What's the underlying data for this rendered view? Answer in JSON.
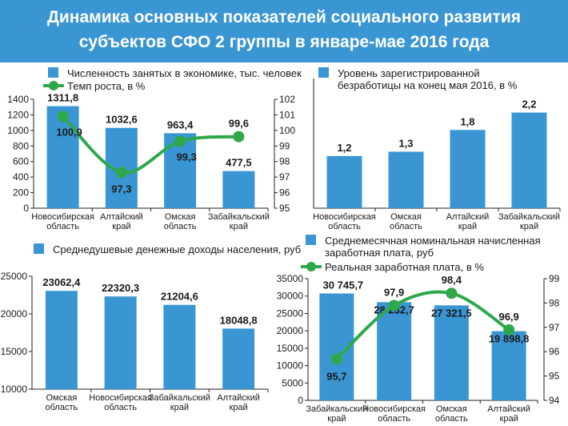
{
  "title_line1": "Динамика основных показателей социального развития",
  "title_line2": "субъектов СФО 2 группы в январе-мае 2016 года",
  "colors": {
    "banner": "#3a96d2",
    "bar": "#3a96d2",
    "line": "#2ea84a",
    "line_dot": "#2ea84a",
    "text": "#1a1a1a"
  },
  "chart_data": [
    {
      "id": "employment",
      "type": "bar+line",
      "categories": [
        [
          "Новосибирская",
          "область"
        ],
        [
          "Алтайский",
          "край"
        ],
        [
          "Омская",
          "область"
        ],
        [
          "Забайкальский",
          "край"
        ]
      ],
      "series": [
        {
          "name": "Численность занятых в экономике, тыс. человек",
          "type": "bar",
          "values": [
            1311.8,
            1032.6,
            963.4,
            477.5
          ],
          "labels": [
            "1311,8",
            "1032,6",
            "963,4",
            "477,5"
          ]
        },
        {
          "name": "Темп роста, в %",
          "type": "line",
          "values": [
            100.9,
            97.3,
            99.3,
            99.6
          ],
          "labels": [
            "100,9",
            "97,3",
            "99,3",
            "99,6"
          ]
        }
      ],
      "y_left": {
        "min": 0,
        "max": 1400,
        "ticks": [
          0,
          200,
          400,
          600,
          800,
          1000,
          1200,
          1400
        ]
      },
      "y_right": {
        "min": 95,
        "max": 102,
        "ticks": [
          95,
          96,
          97,
          98,
          99,
          100,
          101,
          102
        ]
      }
    },
    {
      "id": "unemployment",
      "type": "bar",
      "categories": [
        [
          "Новосибирская",
          "область"
        ],
        [
          "Омская",
          "область"
        ],
        [
          "Алтайский",
          "край"
        ],
        [
          "Забайкальский",
          "край"
        ]
      ],
      "series": [
        {
          "name": [
            "Уровень зарегистрированной",
            "безработицы на конец мая 2016, в %"
          ],
          "type": "bar",
          "values": [
            1.2,
            1.3,
            1.8,
            2.2
          ],
          "labels": [
            "1,2",
            "1,3",
            "1,8",
            "2,2"
          ]
        }
      ],
      "y_left": {
        "min": 0,
        "max": 2.8
      }
    },
    {
      "id": "income",
      "type": "bar",
      "categories": [
        [
          "Омская",
          "область"
        ],
        [
          "Новосибирская",
          "область"
        ],
        [
          "Забайкальский",
          "край"
        ],
        [
          "Алтайский",
          "край"
        ]
      ],
      "series": [
        {
          "name": "Среднедушевые денежные доходы населения, руб",
          "type": "bar",
          "values": [
            23062.4,
            22320.3,
            21204.6,
            18048.8
          ],
          "labels": [
            "23062,4",
            "22320,3",
            "21204,6",
            "18048,8"
          ]
        }
      ],
      "y_left": {
        "min": 10000,
        "max": 25000,
        "ticks": [
          10000,
          15000,
          20000,
          25000
        ]
      }
    },
    {
      "id": "wages",
      "type": "bar+line",
      "categories": [
        [
          "Забайкальский",
          "край"
        ],
        [
          "Новосибирская",
          "область"
        ],
        [
          "Омская",
          "область"
        ],
        [
          "Алтайский",
          "край"
        ]
      ],
      "series": [
        {
          "name": [
            "Среднемесячная номинальная начисленная",
            "заработная плата, руб"
          ],
          "type": "bar",
          "values": [
            30745.7,
            28232.7,
            27321.5,
            19898.8
          ],
          "labels": [
            "30 745,7",
            "28 232,7",
            "27 321,5",
            "19 898,8"
          ]
        },
        {
          "name": "Реальная заработная плата, в %",
          "type": "line",
          "values": [
            95.7,
            97.9,
            98.4,
            96.9
          ],
          "labels": [
            "95,7",
            "97,9",
            "98,4",
            "96,9"
          ]
        }
      ],
      "y_left": {
        "min": 0,
        "max": 35000,
        "ticks": [
          0,
          5000,
          10000,
          15000,
          20000,
          25000,
          30000,
          35000
        ]
      },
      "y_right": {
        "min": 94,
        "max": 99,
        "ticks": [
          94,
          95,
          96,
          97,
          98,
          99
        ]
      }
    }
  ]
}
